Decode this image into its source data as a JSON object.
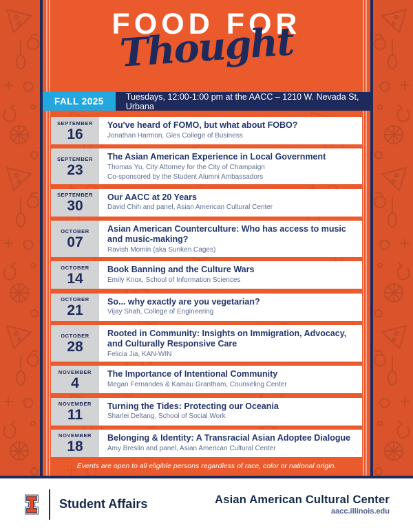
{
  "poster": {
    "title_line1": "FOOD FOR",
    "title_line2": "Thought",
    "season_badge": "FALL 2025",
    "schedule_line": "Tuesdays, 12:00-1:00 pm at the AACC – 1210 W. Nevada St, Urbana",
    "note": "Events are open to all eligible persons regardless of race, color or national origin."
  },
  "events": [
    {
      "month": "SEPTEMBER",
      "day": "16",
      "title": "You've heard of FOMO, but what about FOBO?",
      "speakers": [
        "Jonathan Harmon, Gies College of Business"
      ]
    },
    {
      "month": "SEPTEMBER",
      "day": "23",
      "title": "The Asian American Experience in Local Government",
      "speakers": [
        "Thomas Yu, City Attorney for the City of Champaign",
        "Co-sponsored by the Student Alumni Ambassadors"
      ]
    },
    {
      "month": "SEPTEMBER",
      "day": "30",
      "title": "Our AACC at 20 Years",
      "speakers": [
        "David Chih and panel, Asian American Cultural Center"
      ]
    },
    {
      "month": "OCTOBER",
      "day": "07",
      "title": "Asian American Counterculture: Who has access to music and music-making?",
      "speakers": [
        "Ravish Momin (aka Sunken Cages)"
      ]
    },
    {
      "month": "OCTOBER",
      "day": "14",
      "title": "Book Banning and the Culture Wars",
      "speakers": [
        "Emily Knox, School of Information Sciences"
      ]
    },
    {
      "month": "OCTOBER",
      "day": "21",
      "title": "So... why exactly are you vegetarian?",
      "speakers": [
        "Vijay Shah, College of Engineering"
      ]
    },
    {
      "month": "OCTOBER",
      "day": "28",
      "title": "Rooted in Community: Insights on Immigration, Advocacy, and Culturally Responsive Care",
      "speakers": [
        "Felicia Jia, KAN-WIN"
      ]
    },
    {
      "month": "NOVEMBER",
      "day": "4",
      "title": "The Importance of Intentional Community",
      "speakers": [
        "Megan Fernandes & Kamau Grantham, Counseling Center"
      ]
    },
    {
      "month": "NOVEMBER",
      "day": "11",
      "title": "Turning the Tides: Protecting our Oceania",
      "speakers": [
        "Sharlei Deltang, School of Social Work"
      ]
    },
    {
      "month": "NOVEMBER",
      "day": "18",
      "title": "Belonging & Identity: A Transracial Asian Adoptee Dialogue",
      "speakers": [
        "Amy Breslin and panel, Asian American Cultural Center"
      ]
    }
  ],
  "footer": {
    "org_left": "Student Affairs",
    "org_right": "Asian American Cultural Center",
    "website": "aacc.illinois.edu",
    "logo": "illinois-block-i"
  },
  "colors": {
    "panel_orange": "#EA5A2C",
    "frame_orange": "#DA532B",
    "doodle_stroke": "#BF4B28",
    "navy": "#1F2A5C",
    "footer_navy": "#13294B",
    "cyan_badge": "#22A8DE",
    "date_gray": "#D2D3D5",
    "title_blue": "#24356E",
    "speaker_blue": "#5E6D92"
  }
}
